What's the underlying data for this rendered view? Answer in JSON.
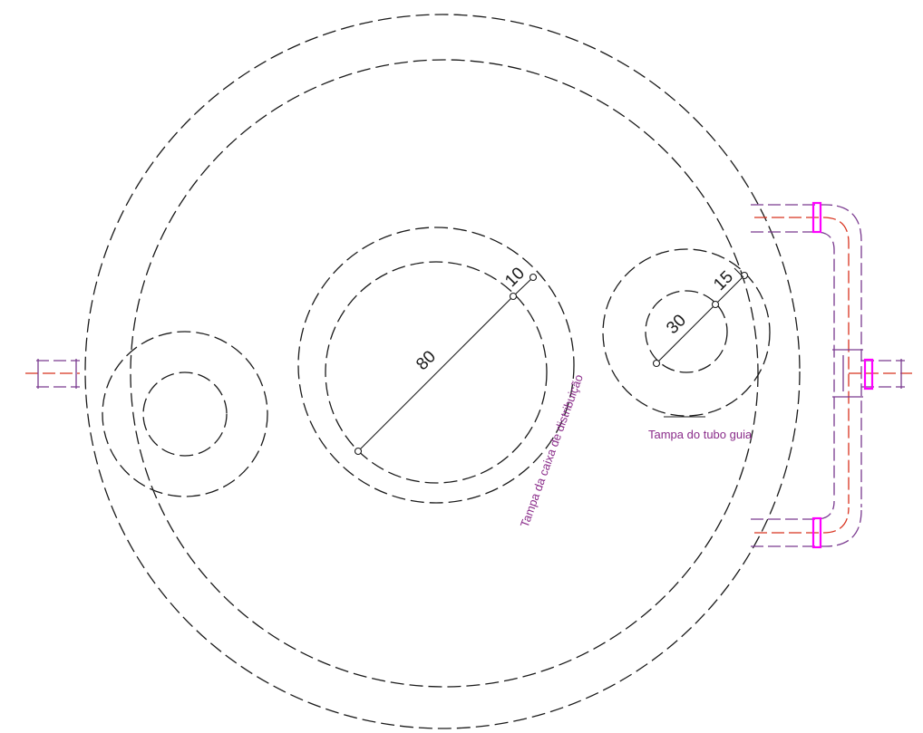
{
  "dimensions": {
    "main_opening_diameter": "80",
    "main_opening_offset": "10",
    "guide_tube_diameter": "30",
    "guide_tube_offset": "15"
  },
  "labels": {
    "distribution_box_cover": "Tampa da caixa de distribuição",
    "guide_tube_cover": "Tampa do tubo guia"
  },
  "colors": {
    "outline": "#1a1a1a",
    "label": "#8a2c8a",
    "pipe_purple": "#7a3a8f",
    "pipe_red": "#d8331f",
    "flange": "#ff00ff"
  }
}
